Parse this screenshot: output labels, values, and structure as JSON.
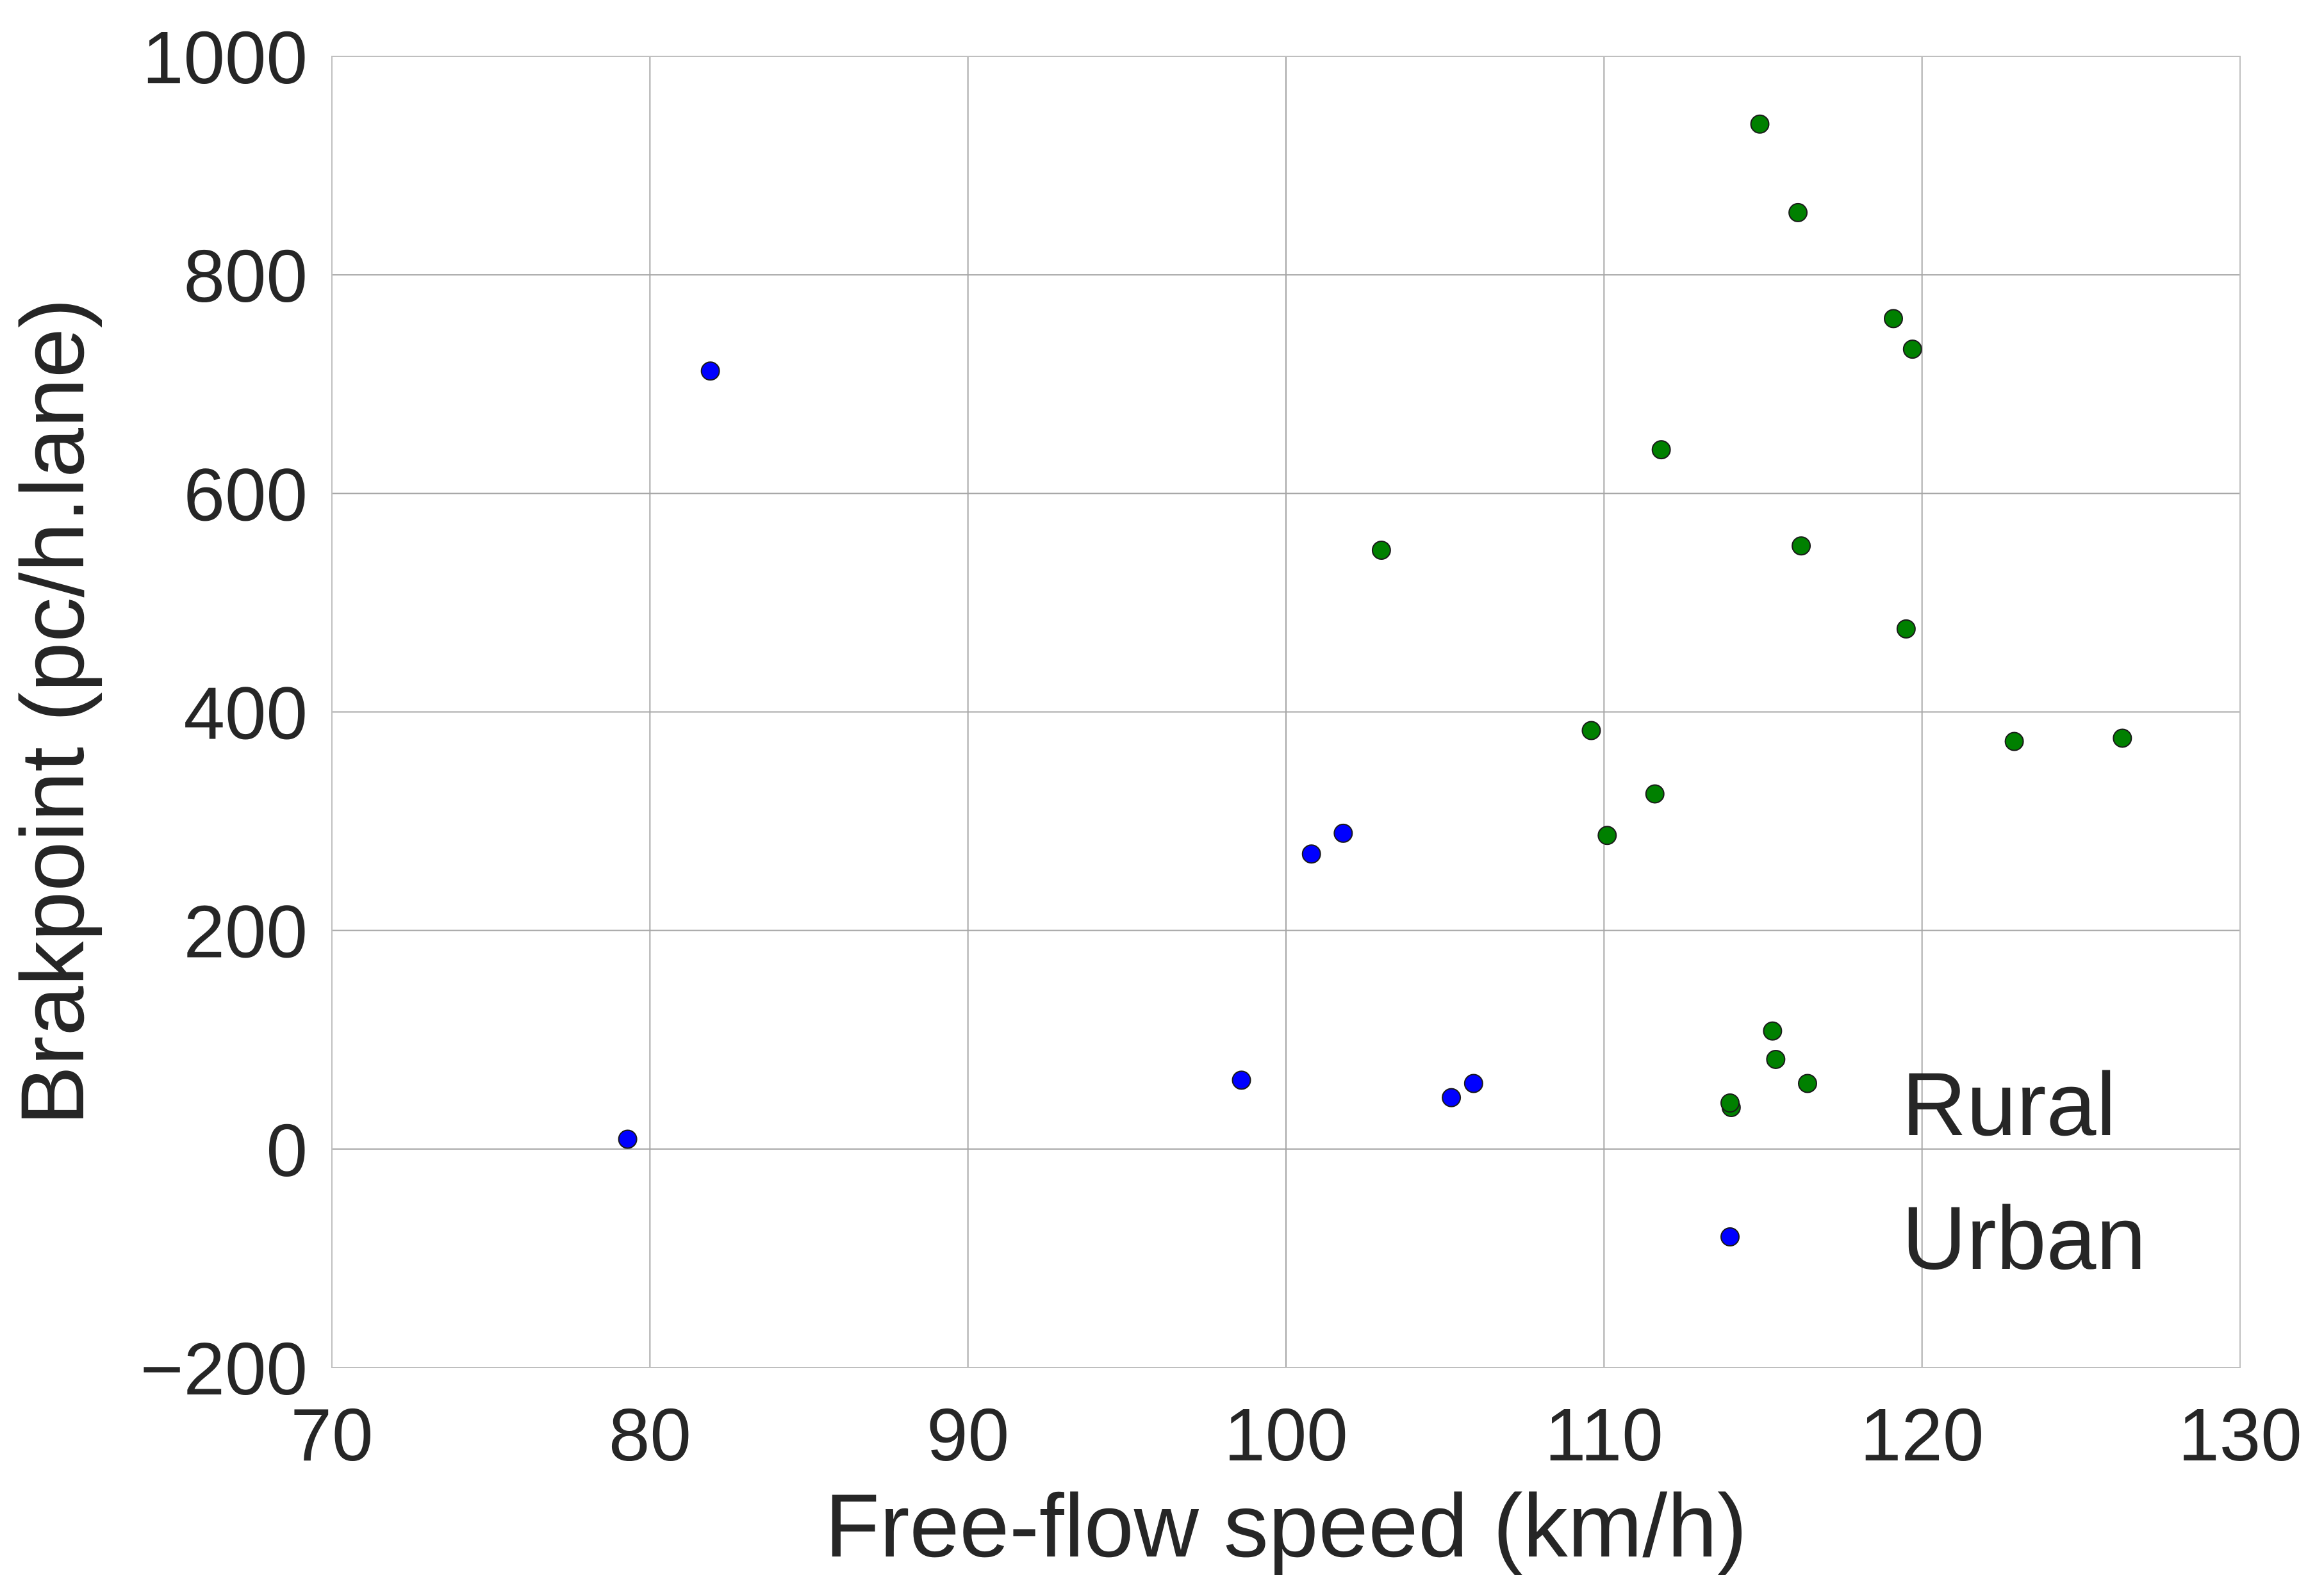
{
  "chart_data": {
    "type": "scatter",
    "title": "",
    "xlabel": "Free-flow speed (km/h)",
    "ylabel": "Brakpoint (pc/h.lane)",
    "xlim": [
      70,
      130
    ],
    "ylim": [
      -200,
      1000
    ],
    "xticks": [
      70,
      80,
      90,
      100,
      110,
      120,
      130
    ],
    "yticks": [
      -200,
      0,
      200,
      400,
      600,
      800,
      1000
    ],
    "xtick_labels": [
      "70",
      "80",
      "90",
      "100",
      "110",
      "120",
      "130"
    ],
    "ytick_labels": [
      "−200",
      "0",
      "200",
      "400",
      "600",
      "800",
      "1000"
    ],
    "grid": true,
    "legend_position": "lower-right",
    "series": [
      {
        "name": "Rural",
        "color": "#008000",
        "points": [
          {
            "x": 103.0,
            "y": 548
          },
          {
            "x": 109.6,
            "y": 383
          },
          {
            "x": 110.1,
            "y": 287
          },
          {
            "x": 111.6,
            "y": 325
          },
          {
            "x": 111.8,
            "y": 640
          },
          {
            "x": 114.0,
            "y": 38
          },
          {
            "x": 114.9,
            "y": 938
          },
          {
            "x": 115.3,
            "y": 108
          },
          {
            "x": 115.4,
            "y": 82
          },
          {
            "x": 116.1,
            "y": 857
          },
          {
            "x": 116.2,
            "y": 552
          },
          {
            "x": 116.4,
            "y": 60
          },
          {
            "x": 119.1,
            "y": 760
          },
          {
            "x": 119.5,
            "y": 476
          },
          {
            "x": 119.7,
            "y": 732
          },
          {
            "x": 122.9,
            "y": 373
          },
          {
            "x": 126.3,
            "y": 376
          }
        ]
      },
      {
        "name": "Urban",
        "color": "#0000ff",
        "points": [
          {
            "x": 79.3,
            "y": 9
          },
          {
            "x": 81.9,
            "y": 712
          },
          {
            "x": 98.6,
            "y": 63
          },
          {
            "x": 100.8,
            "y": 270
          },
          {
            "x": 101.8,
            "y": 289
          },
          {
            "x": 105.2,
            "y": 47
          },
          {
            "x": 105.9,
            "y": 60
          }
        ]
      }
    ]
  }
}
